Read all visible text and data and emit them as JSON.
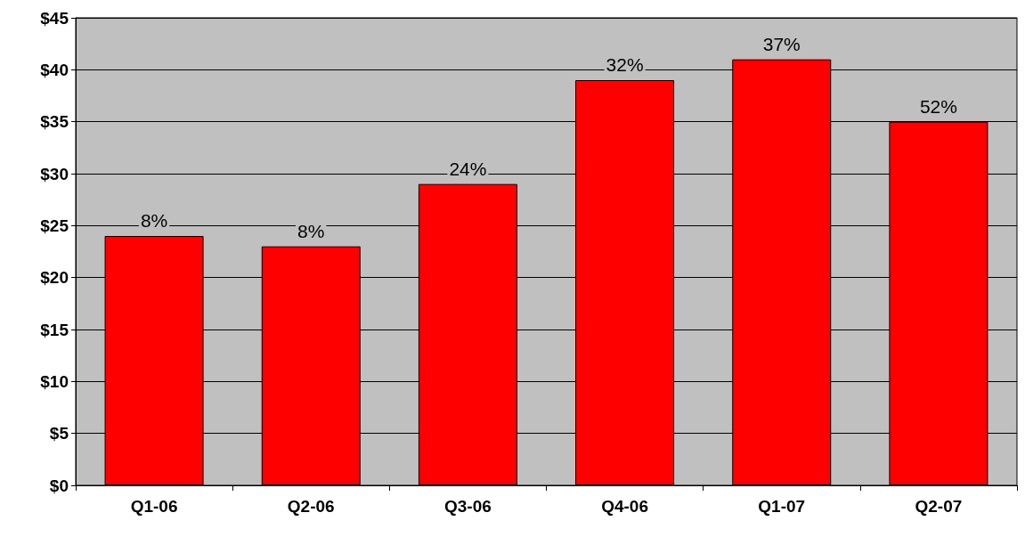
{
  "chart_data": {
    "type": "bar",
    "categories": [
      "Q1-06",
      "Q2-06",
      "Q3-06",
      "Q4-06",
      "Q1-07",
      "Q2-07"
    ],
    "values": [
      24,
      23,
      29,
      39,
      41,
      35
    ],
    "annotations": [
      {
        "text": "8%",
        "x": "Q1-06",
        "y": 24
      },
      {
        "text": "8%",
        "x": "Q2-06",
        "y": 23
      },
      {
        "text": "24%",
        "x": "Q3-06",
        "y": 29
      },
      {
        "text": "32%",
        "x": "Q4-06",
        "y": 39
      },
      {
        "text": "37%",
        "x": "Q1-07",
        "y": 41
      },
      {
        "text": "52%",
        "x": "Q2-07",
        "y": 35
      }
    ],
    "color": "#ff0000",
    "ylim": [
      0,
      45
    ],
    "yticks": [
      {
        "value": 0,
        "label": "$0"
      },
      {
        "value": 5,
        "label": "$5"
      },
      {
        "value": 10,
        "label": "$10"
      },
      {
        "value": 15,
        "label": "$15"
      },
      {
        "value": 20,
        "label": "$20"
      },
      {
        "value": 25,
        "label": "$25"
      },
      {
        "value": 30,
        "label": "$30"
      },
      {
        "value": 35,
        "label": "$35"
      },
      {
        "value": 40,
        "label": "$40"
      },
      {
        "value": 45,
        "label": "$45"
      }
    ],
    "grid": "y"
  }
}
